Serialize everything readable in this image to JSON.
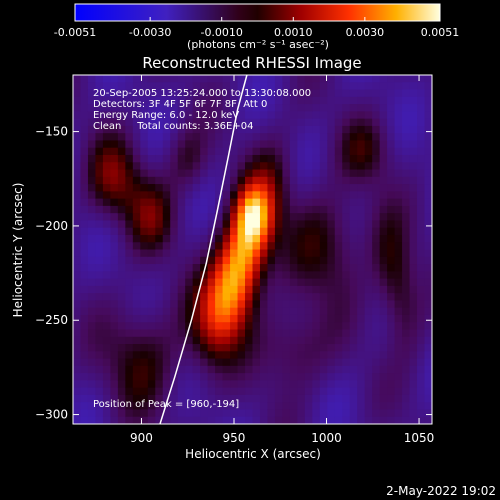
{
  "chart_data": {
    "type": "heatmap",
    "title": "Reconstructed RHESSI Image",
    "xlabel": "Heliocentric X (arcsec)",
    "ylabel": "Heliocentric Y (arcsec)",
    "xlim": [
      863,
      1057
    ],
    "ylim": [
      -305,
      -120
    ],
    "x_ticks": [
      900,
      950,
      1000,
      1050
    ],
    "y_ticks": [
      -150,
      -200,
      -250,
      -300
    ],
    "colorbar": {
      "min": -0.0051,
      "max": 0.0051,
      "ticks": [
        -0.0051,
        -0.003,
        -0.001,
        0.001,
        0.003,
        0.0051
      ],
      "tick_labels": [
        "-0.0051",
        "-0.0030",
        "-0.0010",
        "0.0010",
        "0.0030",
        "0.0051"
      ],
      "unit_label": "(photons cm⁻² s⁻¹ asec⁻²)"
    },
    "annotations": {
      "time_range": "20-Sep-2005 13:25:24.000 to 13:30:08.000",
      "detectors": "Detectors: 3F 4F 5F 6F 7F 8F, Att 0",
      "energy_range": "Energy Range: 6.0 - 12.0 keV",
      "clean": "Clean     Total counts: 3.36E+04",
      "peak": "Position of Peak = [960,-194]"
    },
    "peak": [
      960,
      -194
    ],
    "limb_curve": [
      [
        910,
        -305
      ],
      [
        918,
        -280
      ],
      [
        927,
        -250
      ],
      [
        935,
        -220
      ],
      [
        941,
        -192
      ],
      [
        947,
        -163
      ],
      [
        952,
        -138
      ],
      [
        957,
        -120
      ]
    ],
    "sources": [
      {
        "x": 955,
        "y": -215,
        "sx": 9,
        "sy": 30,
        "amp": 0.0056,
        "angle": 18
      },
      {
        "x": 960,
        "y": -194,
        "sx": 6,
        "sy": 10,
        "amp": 0.0025,
        "angle": 0
      },
      {
        "x": 943,
        "y": -245,
        "sx": 12,
        "sy": 18,
        "amp": 0.0018,
        "angle": 15
      },
      {
        "x": 885,
        "y": -175,
        "sx": 10,
        "sy": 15,
        "amp": 0.0022,
        "angle": 0
      },
      {
        "x": 905,
        "y": -195,
        "sx": 9,
        "sy": 14,
        "amp": 0.0018,
        "angle": 0
      },
      {
        "x": 900,
        "y": -270,
        "sx": 14,
        "sy": 20,
        "amp": 0.0016,
        "angle": 0
      },
      {
        "x": 1000,
        "y": -210,
        "sx": 14,
        "sy": 20,
        "amp": 0.0016,
        "angle": 0
      },
      {
        "x": 1038,
        "y": -230,
        "sx": 8,
        "sy": 25,
        "amp": 0.0019,
        "angle": -10
      },
      {
        "x": 1020,
        "y": -160,
        "sx": 10,
        "sy": 12,
        "amp": 0.0013,
        "angle": 0
      },
      {
        "x": 982,
        "y": -265,
        "sx": 13,
        "sy": 15,
        "amp": 0.0014,
        "angle": 0
      },
      {
        "x": 925,
        "y": -165,
        "sx": 8,
        "sy": 12,
        "amp": 0.0013,
        "angle": 0
      }
    ]
  },
  "footer": {
    "timestamp": "2-May-2022 19:02"
  }
}
